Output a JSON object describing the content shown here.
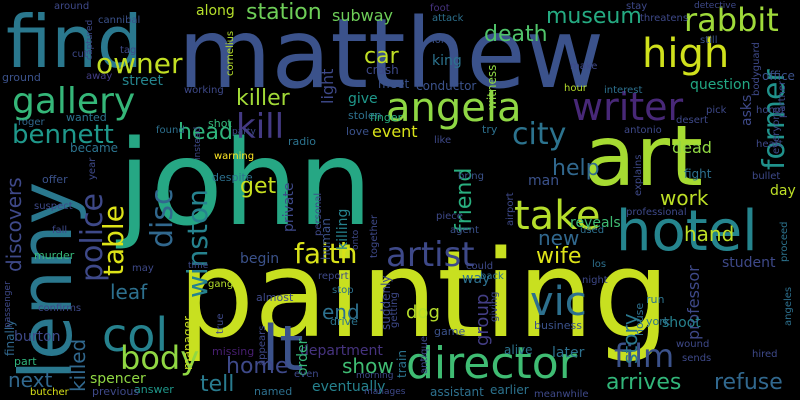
{
  "word_cloud": {
    "background": "#000000",
    "palette": [
      "#fde725",
      "#b5de2b",
      "#6ece58",
      "#35b779",
      "#1f9e89",
      "#26828e",
      "#31688e",
      "#3e4989",
      "#482878",
      "#440154"
    ],
    "words": [
      {
        "text": "john",
        "color": "#26a784"
      },
      {
        "text": "painting",
        "color": "#c8e020"
      },
      {
        "text": "matthew",
        "color": "#3b528b"
      },
      {
        "text": "art",
        "color": "#a6db32"
      },
      {
        "text": "find",
        "color": "#2a788e"
      },
      {
        "text": "lenny",
        "color": "#2a788e"
      },
      {
        "text": "hotel",
        "color": "#25858e"
      },
      {
        "text": "director",
        "color": "#3fbc73"
      },
      {
        "text": "angela",
        "color": "#8fd744"
      },
      {
        "text": "gallery",
        "color": "#35b779"
      },
      {
        "text": "writer",
        "color": "#482878"
      },
      {
        "text": "lt",
        "color": "#3b528b"
      },
      {
        "text": "col",
        "color": "#26828e"
      },
      {
        "text": "high",
        "color": "#d0e11c"
      },
      {
        "text": "take",
        "color": "#b5de2b"
      },
      {
        "text": "vic",
        "color": "#2d708e"
      },
      {
        "text": "artist",
        "color": "#3e4989"
      },
      {
        "text": "faith",
        "color": "#d8e219"
      },
      {
        "text": "kill",
        "color": "#443a83"
      },
      {
        "text": "body",
        "color": "#90d743"
      },
      {
        "text": "film",
        "color": "#3b528b"
      },
      {
        "text": "rabbit",
        "color": "#9fda3a"
      },
      {
        "text": "owner",
        "color": "#c2df23"
      },
      {
        "text": "table",
        "color": "#dde318"
      },
      {
        "text": "winston",
        "color": "#26828e"
      },
      {
        "text": "disc",
        "color": "#31688e"
      },
      {
        "text": "police",
        "color": "#3e4989"
      },
      {
        "text": "city",
        "color": "#2c738e"
      },
      {
        "text": "former",
        "color": "#20928c"
      },
      {
        "text": "bennett",
        "color": "#1f988b"
      },
      {
        "text": "killer",
        "color": "#a2da37"
      },
      {
        "text": "head",
        "color": "#2fb47c"
      },
      {
        "text": "car",
        "color": "#c0df25"
      },
      {
        "text": "station",
        "color": "#6ece58"
      },
      {
        "text": "museum",
        "color": "#25ab82"
      },
      {
        "text": "death",
        "color": "#50c46a"
      },
      {
        "text": "home",
        "color": "#3e4989"
      },
      {
        "text": "tell",
        "color": "#297b8e"
      },
      {
        "text": "arrives",
        "color": "#32b67a"
      },
      {
        "text": "refuse",
        "color": "#31688e"
      },
      {
        "text": "wife",
        "color": "#dde318"
      },
      {
        "text": "friend",
        "color": "#29af7f"
      },
      {
        "text": "help",
        "color": "#31688e"
      },
      {
        "text": "get",
        "color": "#c8e020"
      },
      {
        "text": "work",
        "color": "#bddf26"
      },
      {
        "text": "hand",
        "color": "#bddf26"
      },
      {
        "text": "story",
        "color": "#2a788e"
      },
      {
        "text": "new",
        "color": "#31688e"
      },
      {
        "text": "leaf",
        "color": "#2d708e"
      },
      {
        "text": "end",
        "color": "#2d708e"
      },
      {
        "text": "show",
        "color": "#3fbc73"
      },
      {
        "text": "next",
        "color": "#31688e"
      },
      {
        "text": "killed",
        "color": "#31688e"
      },
      {
        "text": "discovers",
        "color": "#3e4989"
      },
      {
        "text": "dead",
        "color": "#90d743"
      },
      {
        "text": "group",
        "color": "#433e85"
      },
      {
        "text": "department",
        "color": "#46337f"
      },
      {
        "text": "question",
        "color": "#22a884"
      },
      {
        "text": "light",
        "color": "#3e4989"
      },
      {
        "text": "subway",
        "color": "#6ece58"
      },
      {
        "text": "along",
        "color": "#b5de2b"
      },
      {
        "text": "street",
        "color": "#25858e"
      },
      {
        "text": "king",
        "color": "#2c738e"
      },
      {
        "text": "way",
        "color": "#2d708e"
      },
      {
        "text": "professor",
        "color": "#3e4989"
      },
      {
        "text": "burton",
        "color": "#3e4989"
      },
      {
        "text": "spencer",
        "color": "#90d743"
      },
      {
        "text": "manager",
        "color": "#c8e020"
      },
      {
        "text": "missing",
        "color": "#481f71"
      },
      {
        "text": "shoot",
        "color": "#26828e"
      },
      {
        "text": "student",
        "color": "#3e4989"
      },
      {
        "text": "dog",
        "color": "#b5de2b"
      },
      {
        "text": "event",
        "color": "#d8e219"
      },
      {
        "text": "give",
        "color": "#1f988b"
      },
      {
        "text": "alive",
        "color": "#2c738e"
      },
      {
        "text": "later",
        "color": "#2d708e"
      },
      {
        "text": "business",
        "color": "#3b528b"
      },
      {
        "text": "part",
        "color": "#2fb47c"
      },
      {
        "text": "became",
        "color": "#2c738e"
      },
      {
        "text": "murder",
        "color": "#35b779"
      },
      {
        "text": "wanted",
        "color": "#2c738e"
      },
      {
        "text": "offer",
        "color": "#3b528b"
      },
      {
        "text": "fight",
        "color": "#2d708e"
      },
      {
        "text": "day",
        "color": "#bddf26"
      },
      {
        "text": "reveals",
        "color": "#3fbc73"
      },
      {
        "text": "man",
        "color": "#3b528b"
      },
      {
        "text": "begin",
        "color": "#3b528b"
      },
      {
        "text": "private",
        "color": "#3e4989"
      },
      {
        "text": "killing",
        "color": "#26828e"
      },
      {
        "text": "human",
        "color": "#3b528b"
      },
      {
        "text": "train",
        "color": "#2c738e"
      },
      {
        "text": "order",
        "color": "#35b779"
      },
      {
        "text": "drive",
        "color": "#2c738e"
      },
      {
        "text": "eventually",
        "color": "#26828e"
      },
      {
        "text": "named",
        "color": "#2d708e"
      },
      {
        "text": "assistant",
        "color": "#2d708e"
      },
      {
        "text": "earlier",
        "color": "#2c738e"
      },
      {
        "text": "answer",
        "color": "#1f988b"
      },
      {
        "text": "previous",
        "color": "#3e4989"
      },
      {
        "text": "butcher",
        "color": "#d8e219"
      },
      {
        "text": "finally",
        "color": "#31688e"
      },
      {
        "text": "crash",
        "color": "#3e4989"
      },
      {
        "text": "meet",
        "color": "#3b528b"
      },
      {
        "text": "finger",
        "color": "#29af7f"
      },
      {
        "text": "witness",
        "color": "#8fd744"
      },
      {
        "text": "conductor",
        "color": "#3b528b"
      },
      {
        "text": "stolen",
        "color": "#2d708e"
      },
      {
        "text": "love",
        "color": "#3b528b"
      },
      {
        "text": "try",
        "color": "#2d708e"
      },
      {
        "text": "radio",
        "color": "#2c738e"
      },
      {
        "text": "found",
        "color": "#2d708e"
      },
      {
        "text": "shot",
        "color": "#35b779"
      },
      {
        "text": "roger",
        "color": "#31688e"
      },
      {
        "text": "ground",
        "color": "#3b528b"
      },
      {
        "text": "away",
        "color": "#433e85"
      },
      {
        "text": "cannibal",
        "color": "#3b528b"
      },
      {
        "text": "around",
        "color": "#3e4989"
      },
      {
        "text": "cornelius",
        "color": "#b5de2b"
      },
      {
        "text": "working",
        "color": "#3e4989"
      },
      {
        "text": "make",
        "color": "#3e4989"
      },
      {
        "text": "interest",
        "color": "#2d708e"
      },
      {
        "text": "hour",
        "color": "#b5de2b"
      },
      {
        "text": "foot",
        "color": "#46337f"
      },
      {
        "text": "attack",
        "color": "#2d708e"
      },
      {
        "text": "long",
        "color": "#3b528b"
      },
      {
        "text": "still",
        "color": "#3b528b"
      },
      {
        "text": "office",
        "color": "#3b528b"
      },
      {
        "text": "honor",
        "color": "#3e4989"
      },
      {
        "text": "partner",
        "color": "#3e4989"
      },
      {
        "text": "bullet",
        "color": "#3e4989"
      },
      {
        "text": "proceed",
        "color": "#2c738e"
      },
      {
        "text": "angeles",
        "color": "#2d708e"
      },
      {
        "text": "york",
        "color": "#2c738e"
      },
      {
        "text": "run",
        "color": "#2c738e"
      },
      {
        "text": "house",
        "color": "#2d708e"
      },
      {
        "text": "los",
        "color": "#2d708e"
      },
      {
        "text": "used",
        "color": "#2d708e"
      },
      {
        "text": "bring",
        "color": "#3b528b"
      },
      {
        "text": "piece",
        "color": "#3e4989"
      },
      {
        "text": "agent",
        "color": "#3b528b"
      },
      {
        "text": "could",
        "color": "#3e4989"
      },
      {
        "text": "back",
        "color": "#2d708e"
      },
      {
        "text": "night",
        "color": "#3e4989"
      },
      {
        "text": "giving",
        "color": "#3e4989"
      },
      {
        "text": "game",
        "color": "#3b528b"
      },
      {
        "text": "antique",
        "color": "#3e4989"
      },
      {
        "text": "suddenly",
        "color": "#3e4989"
      },
      {
        "text": "together",
        "color": "#3e4989"
      },
      {
        "text": "stop",
        "color": "#2d708e"
      },
      {
        "text": "getting",
        "color": "#3e4989"
      },
      {
        "text": "report",
        "color": "#3e4989"
      },
      {
        "text": "appears",
        "color": "#3e4989"
      },
      {
        "text": "true",
        "color": "#3e4989"
      },
      {
        "text": "gang",
        "color": "#b5de2b"
      },
      {
        "text": "almost",
        "color": "#3e4989"
      },
      {
        "text": "warning",
        "color": "#fde725"
      },
      {
        "text": "despite",
        "color": "#2d708e"
      },
      {
        "text": "instead",
        "color": "#3e4989"
      },
      {
        "text": "year",
        "color": "#3e4989"
      },
      {
        "text": "suspect",
        "color": "#3e4989"
      },
      {
        "text": "fall",
        "color": "#3e4989"
      },
      {
        "text": "confirms",
        "color": "#3e4989"
      },
      {
        "text": "time",
        "color": "#3e4989"
      },
      {
        "text": "may",
        "color": "#3e4989"
      },
      {
        "text": "cut",
        "color": "#3e4989"
      },
      {
        "text": "captured",
        "color": "#3e4989"
      },
      {
        "text": "tag",
        "color": "#3e4989"
      },
      {
        "text": "passenger",
        "color": "#3e4989"
      },
      {
        "text": "like",
        "color": "#3e4989"
      },
      {
        "text": "explains",
        "color": "#3e4989"
      },
      {
        "text": "professional",
        "color": "#3e4989"
      },
      {
        "text": "pick",
        "color": "#3e4989"
      },
      {
        "text": "desert",
        "color": "#3e4989"
      },
      {
        "text": "heart",
        "color": "#3e4989"
      },
      {
        "text": "everyone",
        "color": "#3e4989"
      },
      {
        "text": "asks",
        "color": "#3e4989"
      },
      {
        "text": "bodyguard",
        "color": "#3e4989"
      },
      {
        "text": "threatens",
        "color": "#3e4989"
      },
      {
        "text": "detective",
        "color": "#3e4989"
      },
      {
        "text": "stay",
        "color": "#3e4989"
      },
      {
        "text": "sends",
        "color": "#3e4989"
      },
      {
        "text": "hired",
        "color": "#3e4989"
      },
      {
        "text": "wound",
        "color": "#3e4989"
      },
      {
        "text": "meanwhile",
        "color": "#3e4989"
      },
      {
        "text": "manages",
        "color": "#3e4989"
      },
      {
        "text": "morning",
        "color": "#3e4989"
      },
      {
        "text": "even",
        "color": "#3e4989"
      },
      {
        "text": "personal",
        "color": "#3e4989"
      },
      {
        "text": "airport",
        "color": "#3e4989"
      },
      {
        "text": "antonio",
        "color": "#3e4989"
      },
      {
        "text": "party",
        "color": "#3e4989"
      },
      {
        "text": "onto",
        "color": "#3e4989"
      }
    ]
  }
}
